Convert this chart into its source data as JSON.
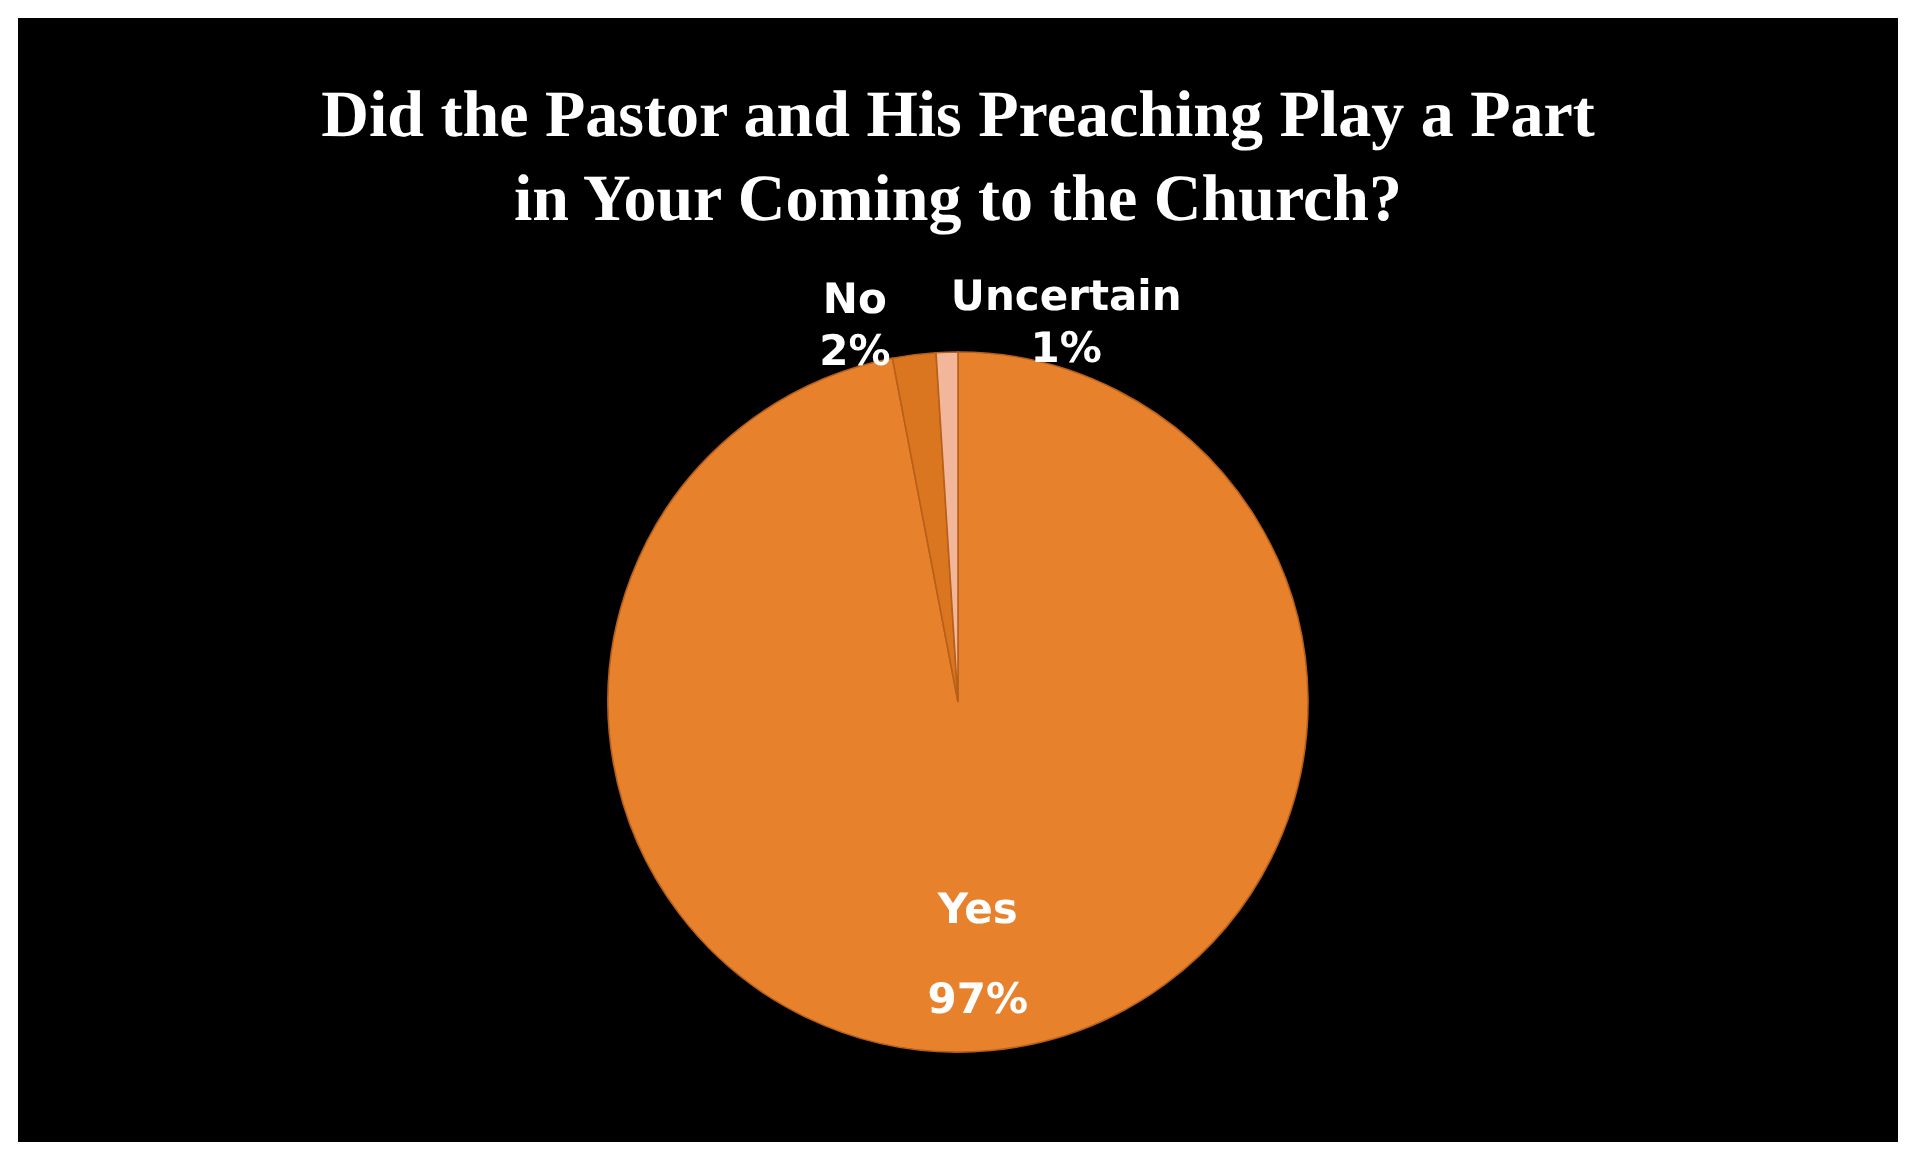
{
  "chart_data": {
    "type": "pie",
    "title": [
      "Did  the Pastor and His Preaching Play a Part",
      "in Your Coming to the Church?"
    ],
    "categories": [
      "Yes",
      "No",
      "Uncertain"
    ],
    "values": [
      97,
      2,
      1
    ],
    "value_labels": [
      "97%",
      "2%",
      "1%"
    ],
    "colors": [
      "#e8812c",
      "#d9761f",
      "#f2b79a"
    ],
    "legend": false
  }
}
